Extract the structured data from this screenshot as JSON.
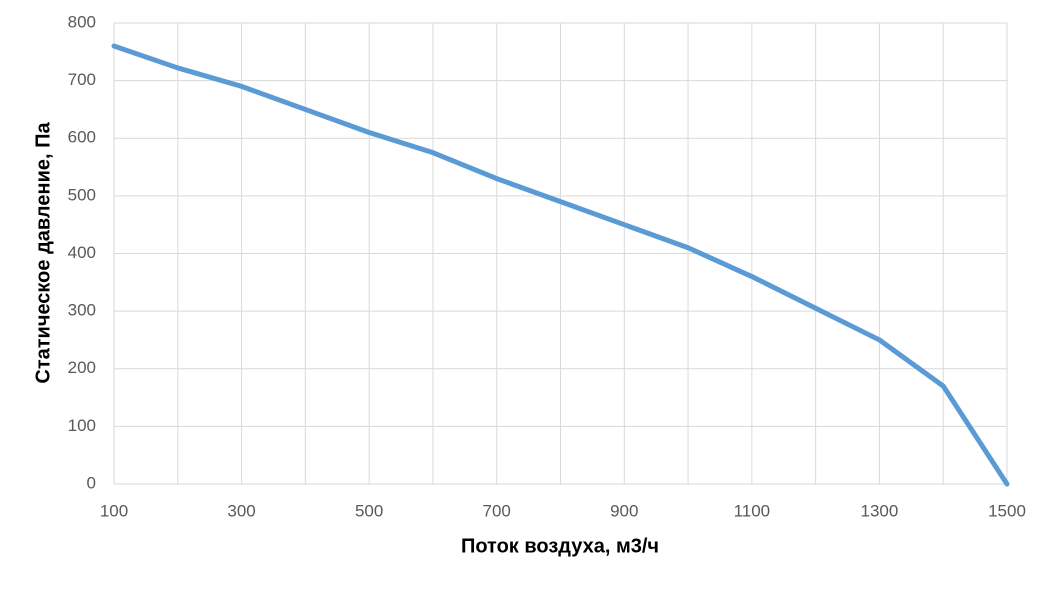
{
  "chart_data": {
    "type": "line",
    "x_label": "Поток воздуха, м3/ч",
    "y_label": "Статическое давление, Па",
    "x": [
      100,
      200,
      300,
      400,
      500,
      600,
      700,
      800,
      900,
      1000,
      1100,
      1200,
      1300,
      1400,
      1500
    ],
    "series": [
      {
        "color": "#5b9bd5",
        "values": [
          760,
          722,
          690,
          650,
          610,
          575,
          530,
          490,
          450,
          410,
          360,
          305,
          250,
          170,
          0
        ]
      }
    ],
    "xlim": [
      100,
      1500
    ],
    "xticks": [
      100,
      300,
      500,
      700,
      900,
      1100,
      1300,
      1500
    ],
    "xgrid_minor": [
      200,
      400,
      600,
      800,
      1000,
      1200,
      1400
    ],
    "ylim": [
      0,
      800
    ],
    "yticks": [
      0,
      100,
      200,
      300,
      400,
      500,
      600,
      700,
      800
    ],
    "grid": true
  }
}
